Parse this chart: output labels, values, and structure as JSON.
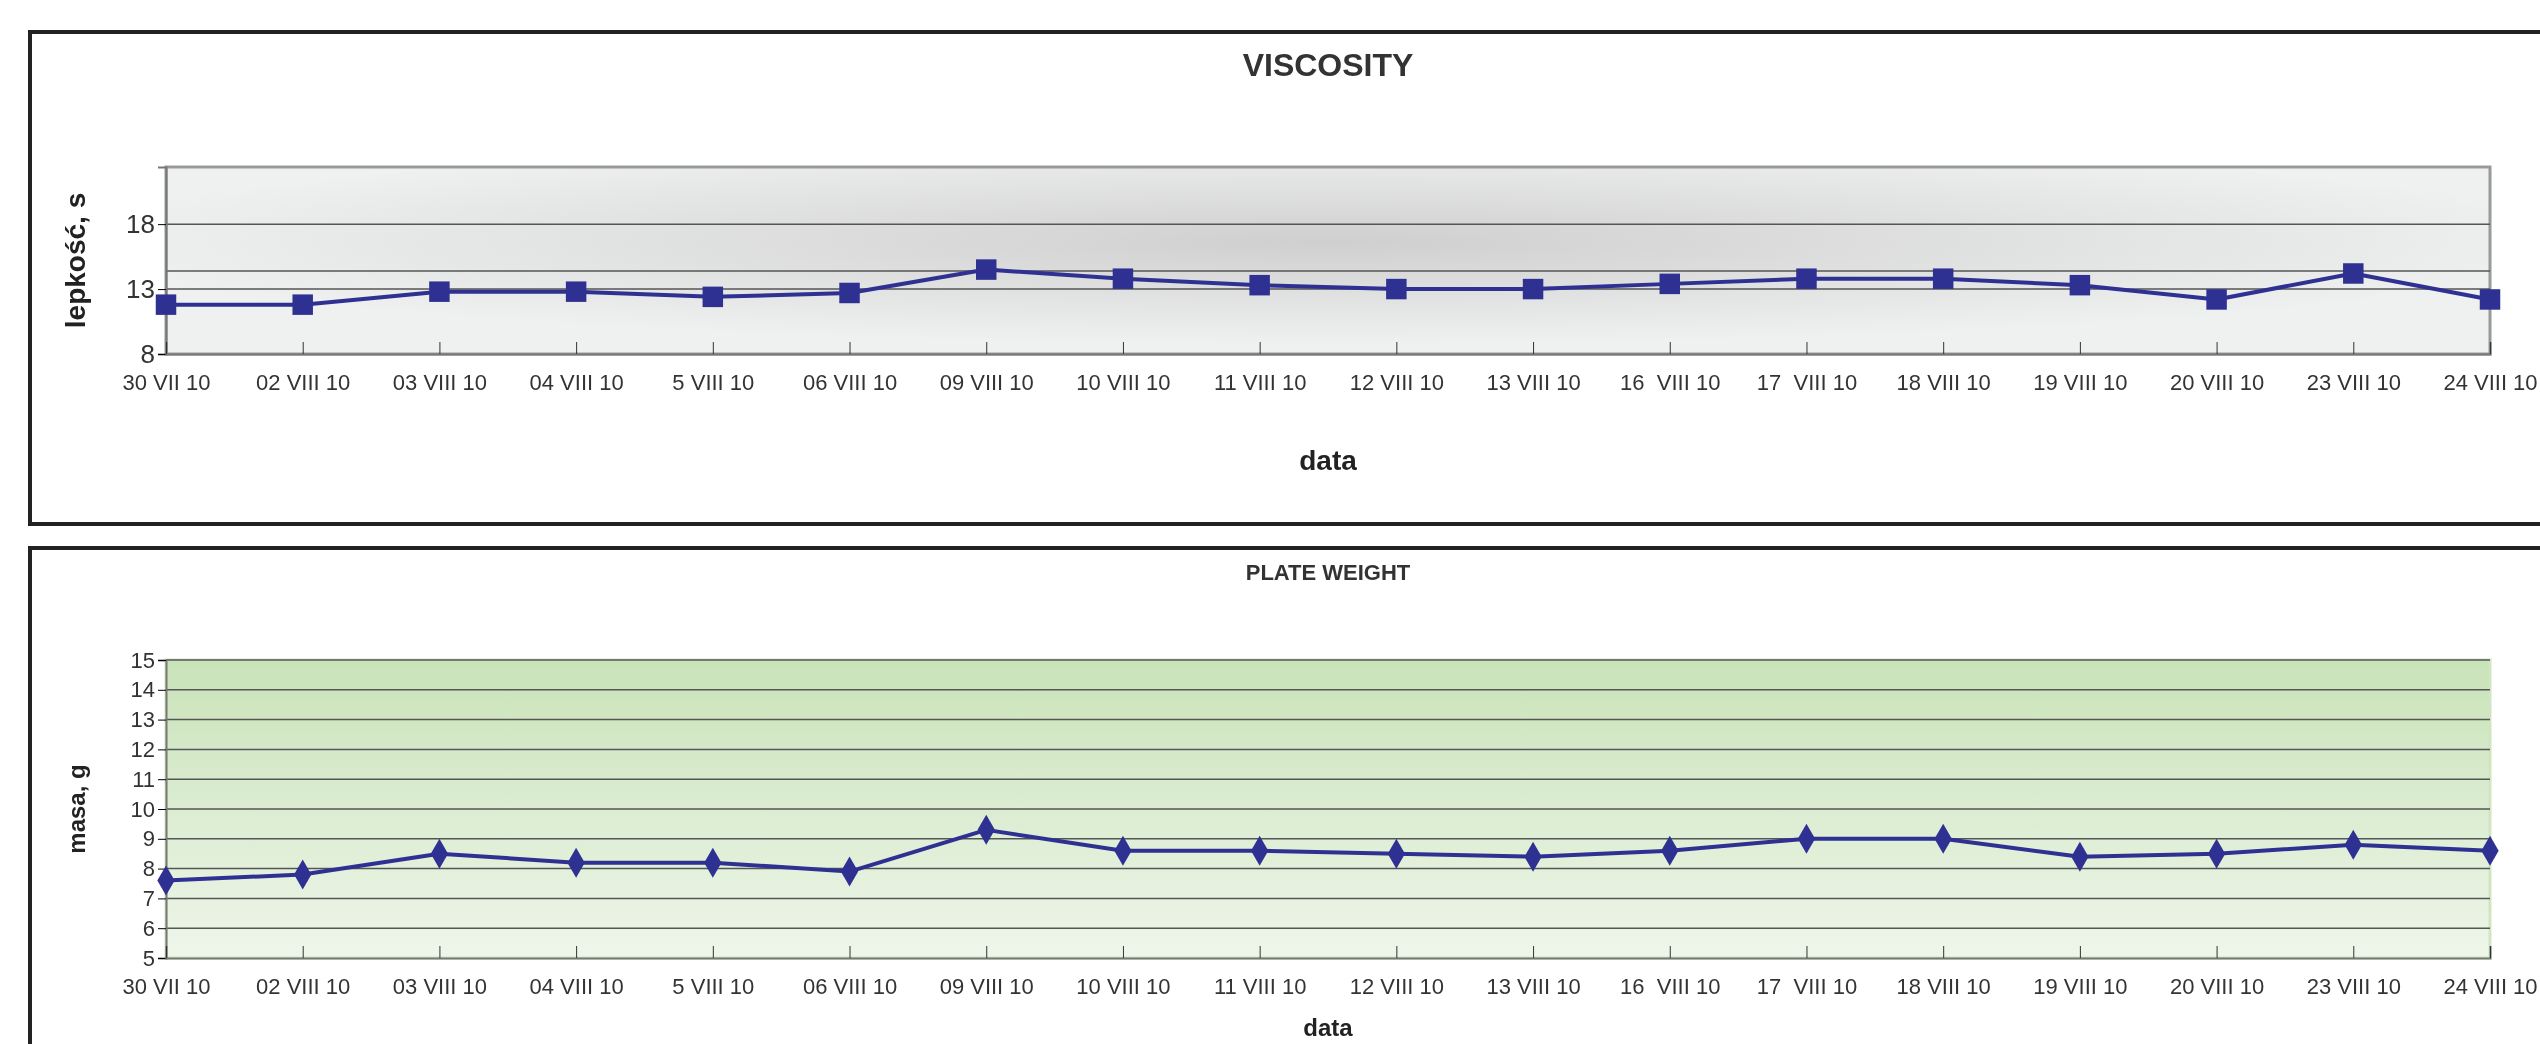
{
  "chart_data": [
    {
      "type": "line",
      "title": "VISCOSITY",
      "xlabel": "data",
      "ylabel": "lepkość, s",
      "categories": [
        "30 VII 10",
        "02 VIII 10",
        "03 VIII 10",
        "04 VIII 10",
        "5 VIII 10",
        "06 VIII 10",
        "09 VIII 10",
        "10 VIII 10",
        "11 VIII 10",
        "12 VIII 10",
        "13 VIII 10",
        "16  VIII 10",
        "17  VIII 10",
        "18 VIII 10",
        "19 VIII 10",
        "20 VIII 10",
        "23 VIII 10",
        "24 VIII 10"
      ],
      "series": [
        {
          "color": "#2e3192",
          "values": [
            11.8,
            11.8,
            12.8,
            12.8,
            12.4,
            12.7,
            14.5,
            13.8,
            13.3,
            13.0,
            13.0,
            13.4,
            13.8,
            13.8,
            13.3,
            12.2,
            14.2,
            12.2
          ]
        }
      ],
      "ylim": [
        8,
        22.4
      ],
      "yticks": [
        8,
        13,
        18
      ],
      "grid": "y",
      "marker": "square",
      "line_style": "solid",
      "ref_lines": [
        {
          "axis": "y",
          "value": 14.4,
          "color": "#555555"
        }
      ]
    },
    {
      "type": "line",
      "title": "PLATE WEIGHT",
      "xlabel": "data",
      "ylabel": "masa, g",
      "categories": [
        "30 VII 10",
        "02 VIII 10",
        "03 VIII 10",
        "04 VIII 10",
        "5 VIII 10",
        "06 VIII 10",
        "09 VIII 10",
        "10 VIII 10",
        "11 VIII 10",
        "12 VIII 10",
        "13 VIII 10",
        "16  VIII 10",
        "17  VIII 10",
        "18 VIII 10",
        "19 VIII 10",
        "20 VIII 10",
        "23 VIII 10",
        "24 VIII 10"
      ],
      "series": [
        {
          "color": "#2e3192",
          "values": [
            7.6,
            7.8,
            8.5,
            8.2,
            8.2,
            7.9,
            9.3,
            8.6,
            8.6,
            8.5,
            8.4,
            8.6,
            9.0,
            9.0,
            8.4,
            8.5,
            8.8,
            8.6
          ]
        }
      ],
      "ylim": [
        5,
        15
      ],
      "yticks": [
        5,
        6,
        7,
        8,
        9,
        10,
        11,
        12,
        13,
        14,
        15
      ],
      "grid": "y",
      "marker": "diamond",
      "line_style": "solid"
    }
  ]
}
